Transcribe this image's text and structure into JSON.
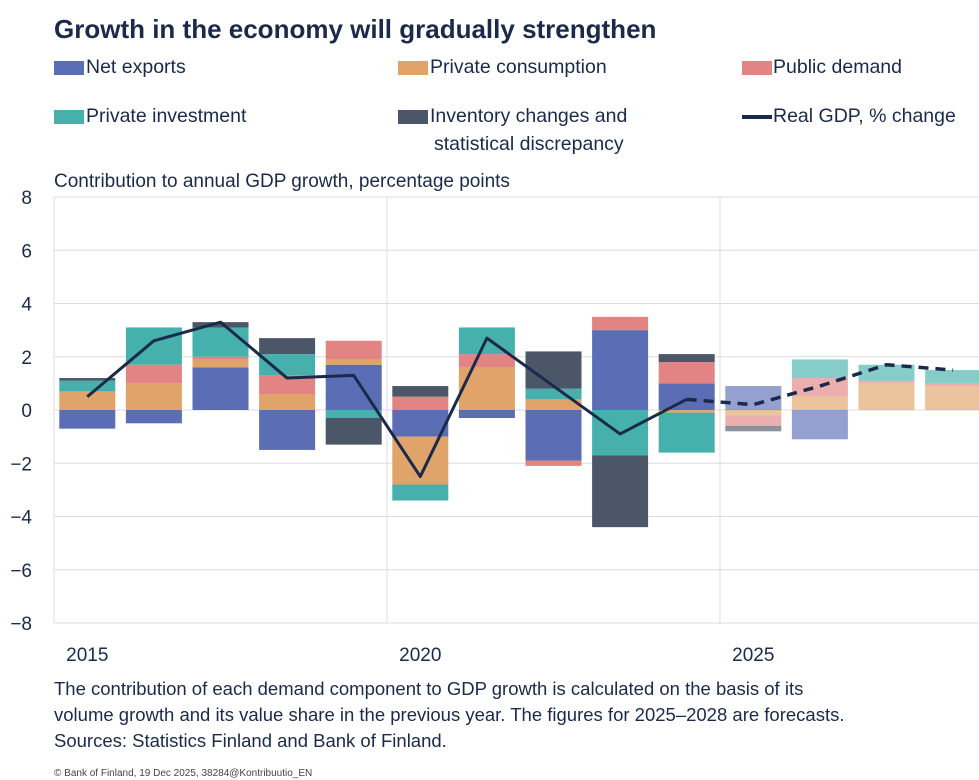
{
  "title": "Growth in the economy will gradually strengthen",
  "legend": {
    "net_exports": "Net exports",
    "private_consumption": "Private consumption",
    "public_demand": "Public demand",
    "private_investment": "Private investment",
    "inventory_line1": "Inventory changes and",
    "inventory_line2": "statistical discrepancy",
    "real_gdp": "Real GDP, % change"
  },
  "colors": {
    "net_exports": "#5b6db5",
    "private_consumption": "#e0a46a",
    "public_demand": "#e28484",
    "private_investment": "#45b0ac",
    "inventory": "#4b5768",
    "real_gdp": "#1b2a4a",
    "grid": "#d9dde3"
  },
  "y_axis_title": "Contribution to annual GDP growth, percentage points",
  "note": {
    "line1": "The contribution of each demand component to GDP growth is calculated on the basis of its",
    "line2": "volume growth and its value share in the previous year. The figures for 2025–2028 are forecasts.",
    "line3": "Sources: Statistics Finland and Bank of Finland."
  },
  "copyright": "© Bank of Finland, 19 Dec 2025, 38284@Kontribuutio_EN",
  "chart_data": {
    "type": "bar",
    "stacked": true,
    "x": [
      2015,
      2016,
      2017,
      2018,
      2019,
      2020,
      2021,
      2022,
      2023,
      2024,
      2025,
      2026,
      2027,
      2028
    ],
    "x_tick_labels": [
      "2015",
      "2020",
      "2025"
    ],
    "forecast_from": 2025,
    "ylim": [
      -8,
      8
    ],
    "yticks": [
      "8",
      "6",
      "4",
      "2",
      "0",
      "−2",
      "−4",
      "−6",
      "−8"
    ],
    "ylabel": "Contribution to annual GDP growth, percentage points",
    "series": [
      {
        "name": "Net exports",
        "key": "net_exports",
        "values": [
          -0.7,
          -0.5,
          1.6,
          -1.5,
          1.7,
          -1.0,
          -0.3,
          -1.9,
          3.0,
          1.0,
          0.9,
          -1.1,
          0.0,
          0.0
        ]
      },
      {
        "name": "Private consumption",
        "key": "private_consumption",
        "values": [
          0.7,
          1.0,
          0.3,
          0.6,
          0.2,
          -1.8,
          1.6,
          0.4,
          0.0,
          -0.1,
          -0.2,
          0.5,
          1.0,
          0.9
        ]
      },
      {
        "name": "Public demand",
        "key": "public_demand",
        "values": [
          0.0,
          0.7,
          0.1,
          0.7,
          0.7,
          0.5,
          0.5,
          -0.2,
          0.5,
          0.8,
          -0.4,
          0.7,
          0.1,
          0.1
        ]
      },
      {
        "name": "Private investment",
        "key": "private_investment",
        "values": [
          0.4,
          1.4,
          1.1,
          0.8,
          -0.3,
          -0.6,
          1.0,
          0.4,
          -1.7,
          -1.5,
          0.0,
          0.7,
          0.6,
          0.5
        ]
      },
      {
        "name": "Inventory changes and statistical discrepancy",
        "key": "inventory",
        "values": [
          0.1,
          0.0,
          0.2,
          0.6,
          -1.0,
          0.4,
          0.0,
          1.4,
          -2.7,
          0.3,
          -0.2,
          0.0,
          0.0,
          0.0
        ]
      }
    ],
    "line": {
      "name": "Real GDP, % change",
      "values": [
        0.5,
        2.6,
        3.3,
        1.2,
        1.3,
        -2.5,
        2.7,
        0.9,
        -0.9,
        0.4,
        0.2,
        0.9,
        1.7,
        1.5
      ]
    }
  }
}
